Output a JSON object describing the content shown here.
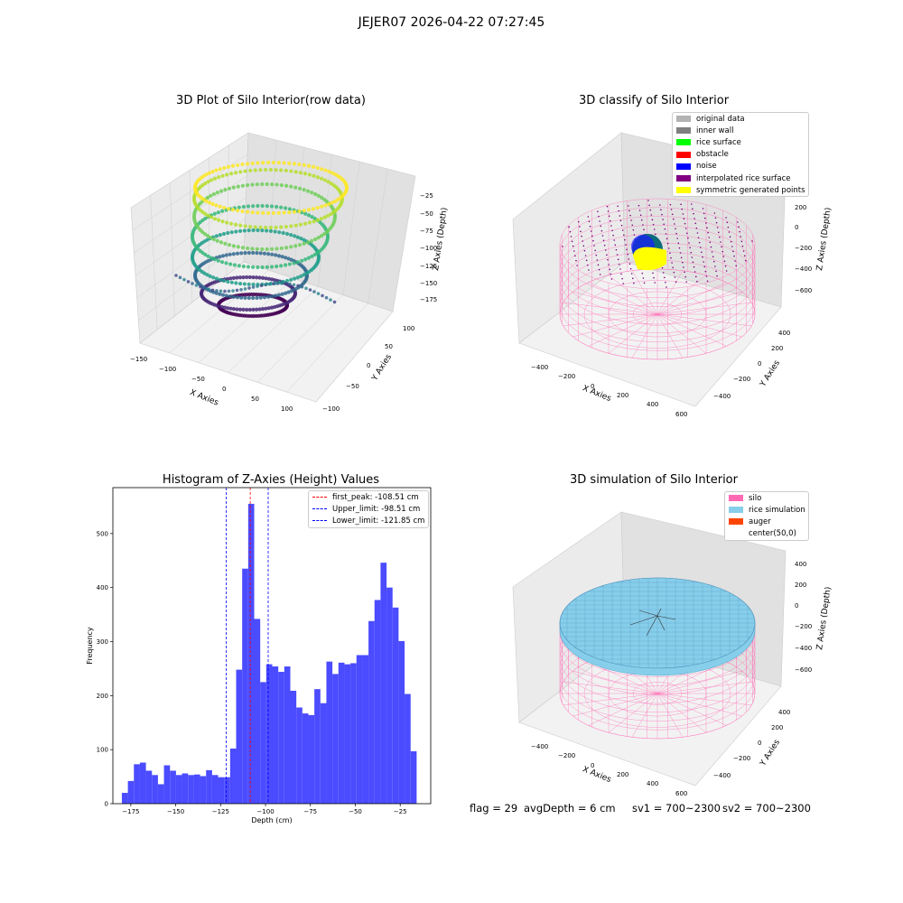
{
  "suptitle": "JEJER07 2026-04-22 07:27:45",
  "footer": {
    "flag": "flag = 29",
    "avg_depth": "avgDepth = 6 cm",
    "sv1": "sv1 = 700~2300",
    "sv2": "sv2 = 700~2300"
  },
  "chart_data": [
    {
      "type": "scatter",
      "title": "3D Plot of Silo Interior(row data)",
      "xlabel": "X Axies",
      "ylabel": "Y Axies",
      "zlabel": "Z Axies (Depth)",
      "x_ticks": [
        "−150",
        "−100",
        "−50",
        "0",
        "50",
        "100"
      ],
      "y_ticks": [
        "−100",
        "−50",
        "0",
        "50",
        "100"
      ],
      "z_ticks": [
        "−25",
        "−50",
        "−75",
        "−100",
        "−125",
        "−150",
        "−175"
      ],
      "xlim": [
        -150,
        110
      ],
      "ylim": [
        -110,
        110
      ],
      "zlim": [
        -185,
        -10
      ],
      "colormap": "viridis",
      "description": ""
    },
    {
      "type": "scatter",
      "title": "3D classify of Silo Interior",
      "xlabel": "X Axies",
      "ylabel": "Y Axies",
      "zlabel": "Z Axies (Depth)",
      "x_ticks": [
        "−400",
        "−200",
        "0",
        "200",
        "400",
        "600"
      ],
      "y_ticks": [
        "−400",
        "−200",
        "0",
        "200",
        "400"
      ],
      "z_ticks": [
        "200",
        "0",
        "−200",
        "−400",
        "−600"
      ],
      "legend": [
        {
          "label": "original data",
          "color": "#b3b3b3"
        },
        {
          "label": "inner wall",
          "color": "#808080"
        },
        {
          "label": "rice surface",
          "color": "#00ff00"
        },
        {
          "label": "obstacle",
          "color": "#ff0000"
        },
        {
          "label": "noise",
          "color": "#0000ff"
        },
        {
          "label": "interpolated rice surface",
          "color": "#800080"
        },
        {
          "label": "symmetric generated points",
          "color": "#ffff00"
        }
      ]
    },
    {
      "type": "bar",
      "title": "Histogram of Z-Axies (Height) Values",
      "xlabel": "Depth (cm)",
      "ylabel": "Frequency",
      "bin_start": -180,
      "bin_width": 3.35,
      "values": [
        20,
        42,
        73,
        76,
        61,
        53,
        36,
        71,
        61,
        53,
        56,
        53,
        54,
        51,
        62,
        53,
        49,
        49,
        102,
        248,
        435,
        555,
        342,
        225,
        258,
        254,
        244,
        254,
        209,
        178,
        167,
        164,
        212,
        186,
        263,
        240,
        261,
        258,
        260,
        275,
        275,
        338,
        377,
        446,
        400,
        363,
        301,
        203,
        97
      ],
      "xlim": [
        -185,
        -8
      ],
      "ylim": [
        0,
        585
      ],
      "x_ticks": [
        -175,
        -150,
        -125,
        -100,
        -75,
        -50,
        -25
      ],
      "x_tick_labels": [
        "−175",
        "−150",
        "−125",
        "−100",
        "−75",
        "−50",
        "−25"
      ],
      "y_ticks": [
        0,
        100,
        200,
        300,
        400,
        500
      ],
      "bar_color": "#4b4bff",
      "vlines": [
        {
          "label": "first_peak: -108.51 cm",
          "x": -108.51,
          "color": "#ff0000"
        },
        {
          "label": "Upper_limit: -98.51 cm",
          "x": -98.51,
          "color": "#0000ff"
        },
        {
          "label": "Lower_limit: -121.85 cm",
          "x": -121.85,
          "color": "#0000ff"
        }
      ],
      "legend_position": "top-right"
    },
    {
      "type": "area",
      "title": "3D simulation of Silo Interior",
      "xlabel": "X Axies",
      "ylabel": "Y Axies",
      "zlabel": "Z Axies (Depth)",
      "x_ticks": [
        "−400",
        "−200",
        "0",
        "200",
        "400",
        "600"
      ],
      "y_ticks": [
        "−400",
        "−200",
        "0",
        "200",
        "400"
      ],
      "z_ticks": [
        "400",
        "200",
        "0",
        "−200",
        "−400",
        "−600"
      ],
      "legend": [
        {
          "label": "silo",
          "color": "#ff69b4"
        },
        {
          "label": "rice simulation",
          "color": "#87ceeb"
        },
        {
          "label": "auger",
          "color": "#ff4500"
        },
        {
          "label": "center(50,0)",
          "color": "#ffffff"
        }
      ]
    }
  ]
}
